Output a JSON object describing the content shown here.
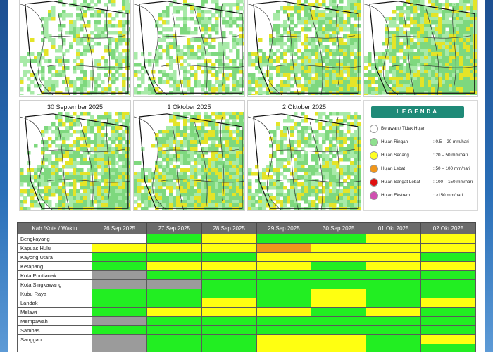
{
  "maps": [
    {
      "id": "map1",
      "label": ""
    },
    {
      "id": "map2",
      "label": ""
    },
    {
      "id": "map3",
      "label": ""
    },
    {
      "id": "map4",
      "label": ""
    },
    {
      "id": "map5",
      "label": "30 September 2025"
    },
    {
      "id": "map6",
      "label": "1 Oktober 2025"
    },
    {
      "id": "map7",
      "label": "2 Oktober 2025"
    }
  ],
  "legend": {
    "title": "LEGENDA",
    "items": [
      {
        "label": "Berawan / Tidak Hujan",
        "range": "",
        "color": "#ffffff"
      },
      {
        "label": "Hujan Ringan",
        "range": ": 0.5 – 20 mm/hari",
        "color": "#8fe08f"
      },
      {
        "label": "Hujan Sedang",
        "range": ": 20 – 50 mm/hari",
        "color": "#ffff22"
      },
      {
        "label": "Hujan Lebat",
        "range": ": 50 – 100 mm/hari",
        "color": "#f0961b"
      },
      {
        "label": "Hujan Sangat Lebat",
        "range": ": 100 – 150 mm/hari",
        "color": "#e01010"
      },
      {
        "label": "Hujan Ekstrem",
        "range": ": >150 mm/hari",
        "color": "#d050b0"
      }
    ]
  },
  "table": {
    "header_first": "Kab./Kota / Waktu",
    "dates": [
      "26 Sep 2025",
      "27 Sep 2025",
      "28 Sep 2025",
      "29 Sep 2025",
      "30 Sep 2025",
      "01 Okt 2025",
      "02 Okt 2025"
    ],
    "rows": [
      {
        "name": "Bengkayang",
        "cells": [
          "white",
          "green",
          "yellow",
          "green",
          "green",
          "yellow",
          "yellow"
        ]
      },
      {
        "name": "Kapuas Hulu",
        "cells": [
          "yellow",
          "yellow",
          "yellow",
          "orange",
          "yellow",
          "yellow",
          "yellow"
        ]
      },
      {
        "name": "Kayong Utara",
        "cells": [
          "green",
          "green",
          "green",
          "yellow",
          "yellow",
          "yellow",
          "green"
        ]
      },
      {
        "name": "Ketapang",
        "cells": [
          "green",
          "yellow",
          "yellow",
          "yellow",
          "green",
          "yellow",
          "yellow"
        ]
      },
      {
        "name": "Kota Pontianak",
        "cells": [
          "gray",
          "green",
          "green",
          "green",
          "green",
          "green",
          "green"
        ]
      },
      {
        "name": "Kota Singkawang",
        "cells": [
          "gray",
          "gray",
          "green",
          "green",
          "green",
          "green",
          "green"
        ]
      },
      {
        "name": "Kubu Raya",
        "cells": [
          "green",
          "green",
          "green",
          "green",
          "yellow",
          "green",
          "green"
        ]
      },
      {
        "name": "Landak",
        "cells": [
          "green",
          "green",
          "yellow",
          "green",
          "yellow",
          "green",
          "yellow"
        ]
      },
      {
        "name": "Melawi",
        "cells": [
          "green",
          "yellow",
          "yellow",
          "yellow",
          "green",
          "yellow",
          "green"
        ]
      },
      {
        "name": "Mempawah",
        "cells": [
          "gray",
          "green",
          "green",
          "green",
          "green",
          "green",
          "green"
        ]
      },
      {
        "name": "Sambas",
        "cells": [
          "green",
          "green",
          "green",
          "green",
          "green",
          "green",
          "green"
        ]
      },
      {
        "name": "Sanggau",
        "cells": [
          "gray",
          "green",
          "green",
          "yellow",
          "yellow",
          "green",
          "yellow"
        ]
      },
      {
        "name": "",
        "cells": [
          "gray",
          "green",
          "green",
          "yellow",
          "yellow",
          "green",
          "green"
        ]
      }
    ]
  }
}
